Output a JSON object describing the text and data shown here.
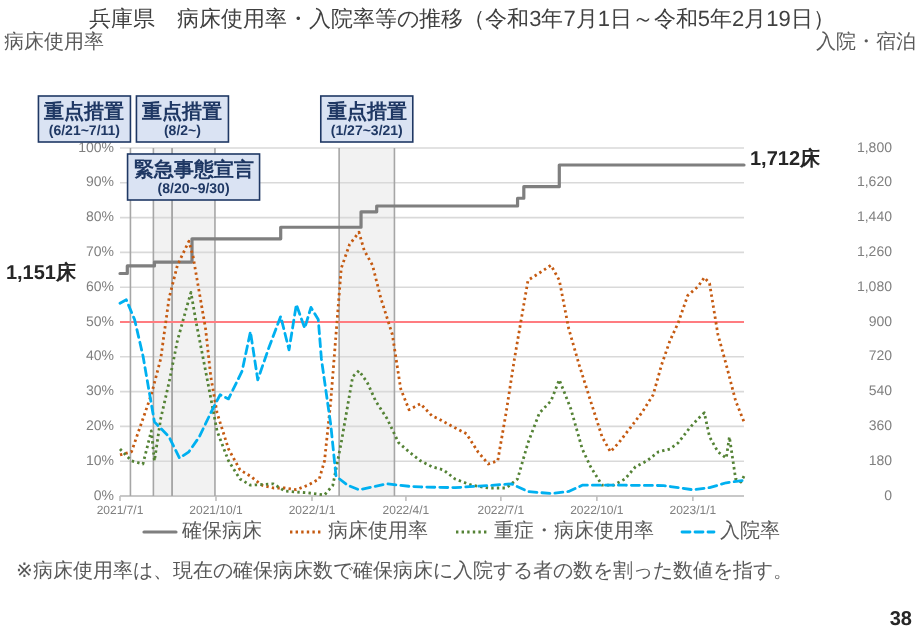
{
  "chart_data": {
    "type": "line",
    "title": "兵庫県　病床使用率・入院率等の推移（令和3年7月1日～令和5年2月19日）",
    "ylabel": "病床使用率",
    "y2label": "入院・宿泊",
    "xlim": [
      "2021-07-01",
      "2023-02-19"
    ],
    "grid": "y",
    "legend": "bottom",
    "xticks": [
      {
        "value": "2021-07-01",
        "label": "2021/7/1"
      },
      {
        "value": "2021-10-01",
        "label": "2021/10/1"
      },
      {
        "value": "2022-01-01",
        "label": "2022/1/1"
      },
      {
        "value": "2022-04-01",
        "label": "2022/4/1"
      },
      {
        "value": "2022-07-01",
        "label": "2022/7/1"
      },
      {
        "value": "2022-10-01",
        "label": "2022/10/1"
      },
      {
        "value": "2023-01-01",
        "label": "2023/1/1"
      }
    ],
    "ylim": [
      0,
      100
    ],
    "yticks": [
      {
        "value": 0,
        "label": "0%"
      },
      {
        "value": 10,
        "label": "10%"
      },
      {
        "value": 20,
        "label": "20%"
      },
      {
        "value": 30,
        "label": "30%"
      },
      {
        "value": 40,
        "label": "40%"
      },
      {
        "value": 50,
        "label": "50%"
      },
      {
        "value": 60,
        "label": "60%"
      },
      {
        "value": 70,
        "label": "70%"
      },
      {
        "value": 80,
        "label": "80%"
      },
      {
        "value": 90,
        "label": "90%"
      },
      {
        "value": 100,
        "label": "100%"
      }
    ],
    "y2lim": [
      0,
      1800
    ],
    "y2ticks": [
      0,
      180,
      360,
      540,
      720,
      900,
      {
        "value": 1080,
        "label": "1,080"
      },
      {
        "value": 1260,
        "label": "1,260"
      },
      {
        "value": 1440,
        "label": "1,440"
      },
      {
        "value": 1620,
        "label": "1,620"
      },
      {
        "value": 1800,
        "label": "1,800"
      }
    ],
    "series": [
      {
        "name": "確保病床",
        "type": "step",
        "axis": "y2",
        "color": "#7f7f7f",
        "line_style": "solid",
        "x": [
          "2021-07-01",
          "2021-07-08",
          "2021-08-03",
          "2021-09-08",
          "2021-12-02",
          "2022-02-17",
          "2022-03-04",
          "2022-07-17",
          "2022-07-23",
          "2022-08-26",
          "2023-02-19"
        ],
        "values": [
          1151,
          1190,
          1210,
          1330,
          1390,
          1470,
          1500,
          1540,
          1600,
          1712,
          1712
        ]
      },
      {
        "name": "病床使用率",
        "color": "#c55a11",
        "line_style": "dotted",
        "x": [
          "2021-07-01",
          "2021-07-12",
          "2021-07-23",
          "2021-07-31",
          "2021-08-09",
          "2021-08-17",
          "2021-08-25",
          "2021-09-05",
          "2021-09-09",
          "2021-09-14",
          "2021-09-21",
          "2021-09-26",
          "2021-10-02",
          "2021-10-13",
          "2021-10-24",
          "2021-11-03",
          "2021-11-14",
          "2021-11-25",
          "2021-12-06",
          "2021-12-17",
          "2021-12-28",
          "2022-01-08",
          "2022-01-13",
          "2022-01-19",
          "2022-01-24",
          "2022-01-29",
          "2022-02-06",
          "2022-02-15",
          "2022-02-20",
          "2022-02-28",
          "2022-03-08",
          "2022-03-19",
          "2022-03-27",
          "2022-04-04",
          "2022-04-15",
          "2022-04-26",
          "2022-05-02",
          "2022-05-18",
          "2022-05-29",
          "2022-06-09",
          "2022-06-19",
          "2022-06-28",
          "2022-07-06",
          "2022-07-14",
          "2022-07-22",
          "2022-07-27",
          "2022-08-05",
          "2022-08-18",
          "2022-08-26",
          "2022-09-04",
          "2022-09-14",
          "2022-09-25",
          "2022-10-06",
          "2022-10-14",
          "2022-10-22",
          "2022-11-02",
          "2022-11-13",
          "2022-11-24",
          "2022-12-02",
          "2022-12-10",
          "2022-12-18",
          "2022-12-27",
          "2023-01-06",
          "2023-01-12",
          "2023-01-17",
          "2023-01-25",
          "2023-02-02",
          "2023-02-11",
          "2023-02-19"
        ],
        "values": [
          11.8,
          12.7,
          22.2,
          29.1,
          39.4,
          56.8,
          66.3,
          73.2,
          68.9,
          60.2,
          48.1,
          34.3,
          23.9,
          13.5,
          7.5,
          5.7,
          3.1,
          2.3,
          2.3,
          1.8,
          3.1,
          4.9,
          10.1,
          27.3,
          46.4,
          65.4,
          72.3,
          75.8,
          70.6,
          66.3,
          56.8,
          46.4,
          30.8,
          24.8,
          26.5,
          23.0,
          22.2,
          19.6,
          17.9,
          12.7,
          9.2,
          10.1,
          23.9,
          39.4,
          53.3,
          62.0,
          63.7,
          66.3,
          62.0,
          48.1,
          37.7,
          27.3,
          17.0,
          12.7,
          15.3,
          19.6,
          23.9,
          29.1,
          37.7,
          44.6,
          49.8,
          57.6,
          60.2,
          62.8,
          61.1,
          46.4,
          37.7,
          27.3,
          21.3
        ]
      },
      {
        "name": "重症・病床使用率",
        "color": "#548235",
        "line_style": "dotted",
        "x": [
          "2021-07-01",
          "2021-07-12",
          "2021-07-23",
          "2021-07-31",
          "2021-08-03",
          "2021-08-09",
          "2021-08-17",
          "2021-08-25",
          "2021-09-02",
          "2021-09-07",
          "2021-09-12",
          "2021-09-21",
          "2021-10-02",
          "2021-10-13",
          "2021-10-24",
          "2021-11-03",
          "2021-11-25",
          "2021-12-06",
          "2021-12-28",
          "2022-01-13",
          "2022-01-21",
          "2022-01-29",
          "2022-02-09",
          "2022-02-15",
          "2022-02-23",
          "2022-03-03",
          "2022-03-14",
          "2022-03-25",
          "2022-04-04",
          "2022-04-15",
          "2022-04-26",
          "2022-05-07",
          "2022-05-18",
          "2022-06-03",
          "2022-06-19",
          "2022-07-06",
          "2022-07-17",
          "2022-07-27",
          "2022-08-07",
          "2022-08-18",
          "2022-08-26",
          "2022-09-06",
          "2022-09-17",
          "2022-09-25",
          "2022-10-06",
          "2022-10-17",
          "2022-10-28",
          "2022-11-07",
          "2022-11-18",
          "2022-11-29",
          "2022-12-10",
          "2022-12-18",
          "2022-12-29",
          "2023-01-06",
          "2023-01-12",
          "2023-01-17",
          "2023-01-25",
          "2023-02-02",
          "2023-02-05",
          "2023-02-11",
          "2023-02-16",
          "2023-02-19"
        ],
        "values": [
          13.5,
          10.1,
          9.2,
          18.7,
          10.1,
          22.2,
          32.6,
          44.6,
          53.3,
          58.5,
          49.8,
          36.0,
          18.7,
          10.1,
          4.9,
          3.1,
          3.5,
          1.4,
          0.9,
          0.3,
          3.1,
          15.3,
          34.3,
          36.0,
          32.6,
          27.3,
          22.2,
          15.3,
          12.7,
          10.1,
          8.4,
          7.5,
          4.9,
          3.1,
          2.3,
          2.3,
          4.9,
          15.3,
          23.9,
          27.3,
          33.4,
          25.1,
          13.5,
          8.4,
          3.1,
          3.1,
          4.9,
          8.4,
          10.1,
          12.7,
          13.5,
          15.3,
          19.6,
          22.2,
          23.9,
          17.0,
          12.7,
          10.9,
          17.0,
          4.9,
          4.0,
          5.7
        ]
      },
      {
        "name": "入院率",
        "color": "#00b0f0",
        "line_style": "dashed",
        "x": [
          "2021-07-01",
          "2021-07-07",
          "2021-07-15",
          "2021-07-23",
          "2021-08-03",
          "2021-08-17",
          "2021-08-27",
          "2021-09-05",
          "2021-09-15",
          "2021-09-26",
          "2021-10-05",
          "2021-10-13",
          "2021-10-26",
          "2021-11-03",
          "2021-11-10",
          "2021-11-21",
          "2021-12-02",
          "2021-12-10",
          "2021-12-17",
          "2021-12-25",
          "2021-12-31",
          "2022-01-07",
          "2022-01-10",
          "2022-01-19",
          "2022-01-24",
          "2022-02-04",
          "2022-02-15",
          "2022-02-28",
          "2022-03-14",
          "2022-04-04",
          "2022-04-15",
          "2022-05-18",
          "2022-06-19",
          "2022-07-11",
          "2022-07-27",
          "2022-08-18",
          "2022-09-04",
          "2022-09-17",
          "2022-10-28",
          "2022-12-04",
          "2023-01-01",
          "2023-01-17",
          "2023-02-02",
          "2023-02-19"
        ],
        "values": [
          55.4,
          56.4,
          50.7,
          40.3,
          21.3,
          17.0,
          10.9,
          12.7,
          17.0,
          23.9,
          29.1,
          27.9,
          35.9,
          47.2,
          33.4,
          42.9,
          51.6,
          42.0,
          55.0,
          48.2,
          54.2,
          50.7,
          39.4,
          20.4,
          5.7,
          3.1,
          1.8,
          2.6,
          3.5,
          2.8,
          2.6,
          2.4,
          3.0,
          3.5,
          1.3,
          0.7,
          1.3,
          3.1,
          3.1,
          3.0,
          1.8,
          2.4,
          3.8,
          4.5
        ]
      }
    ],
    "ref_lines": [
      {
        "axis": "y",
        "value": 50,
        "color": "#ff7c80"
      },
      {
        "axis": "x",
        "value": "2021-07-11",
        "label": "重点措置\n(6/21~7/11)",
        "color": "#a6a6a6"
      }
    ],
    "bands": [
      {
        "axis": "x",
        "from": "2021-08-02",
        "to": "2021-08-20",
        "label": "重点措置\n(8/2~)",
        "color": "#d9d9d9"
      },
      {
        "axis": "x",
        "from": "2021-08-20",
        "to": "2021-09-30",
        "label": "緊急事態宣言\n(8/20~9/30)",
        "color": "#d9d9d9"
      },
      {
        "axis": "x",
        "from": "2022-01-27",
        "to": "2022-03-21",
        "label": "重点措置\n(1/27~3/21)",
        "color": "#d9d9d9"
      }
    ],
    "annotations": [
      "1,151床",
      "1,712床",
      "※病床使用率は、現在の確保病床数で確保病床に入院する者の数を割った数値を指す。",
      "38"
    ]
  }
}
